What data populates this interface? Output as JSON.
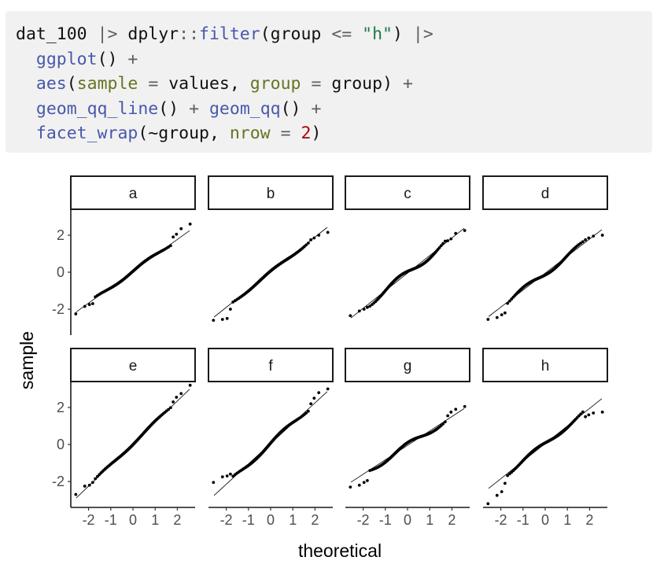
{
  "code": {
    "lines": [
      [
        [
          "id",
          "dat_100 "
        ],
        [
          "op",
          "|> "
        ],
        [
          "id",
          "dplyr"
        ],
        [
          "op",
          "::"
        ],
        [
          "fn",
          "filter"
        ],
        [
          "id",
          "(group "
        ],
        [
          "op",
          "<= "
        ],
        [
          "str",
          "\"h\""
        ],
        [
          "id",
          ") "
        ],
        [
          "op",
          "|>"
        ]
      ],
      [
        [
          "id",
          "  "
        ],
        [
          "fn",
          "ggplot"
        ],
        [
          "id",
          "() "
        ],
        [
          "op",
          "+"
        ]
      ],
      [
        [
          "id",
          "  "
        ],
        [
          "fn",
          "aes"
        ],
        [
          "id",
          "("
        ],
        [
          "arg",
          "sample"
        ],
        [
          "id",
          " "
        ],
        [
          "op",
          "="
        ],
        [
          "id",
          " values, "
        ],
        [
          "arg",
          "group"
        ],
        [
          "id",
          " "
        ],
        [
          "op",
          "="
        ],
        [
          "id",
          " group) "
        ],
        [
          "op",
          "+"
        ]
      ],
      [
        [
          "id",
          "  "
        ],
        [
          "fn",
          "geom_qq_line"
        ],
        [
          "id",
          "() "
        ],
        [
          "op",
          "+"
        ],
        [
          "id",
          " "
        ],
        [
          "fn",
          "geom_qq"
        ],
        [
          "id",
          "() "
        ],
        [
          "op",
          "+"
        ]
      ],
      [
        [
          "id",
          "  "
        ],
        [
          "fn",
          "facet_wrap"
        ],
        [
          "id",
          "(~group, "
        ],
        [
          "arg",
          "nrow"
        ],
        [
          "id",
          " "
        ],
        [
          "op",
          "="
        ],
        [
          "id",
          " "
        ],
        [
          "num",
          "2"
        ],
        [
          "id",
          ")"
        ]
      ]
    ]
  },
  "chart_data": {
    "type": "scatter",
    "subtype": "qq-plot facet_wrap",
    "xlabel": "theoretical",
    "ylabel": "sample",
    "xlim": [
      -2.8,
      2.8
    ],
    "ylim": [
      -3.4,
      3.4
    ],
    "xticks": [
      -2,
      -1,
      0,
      1,
      2
    ],
    "xtick_labels": [
      "-2",
      "-1",
      "0",
      "1",
      "2"
    ],
    "yticks": [
      -2,
      0,
      2
    ],
    "ytick_labels": [
      "-2",
      "0",
      "2"
    ],
    "facets": [
      {
        "label": "a",
        "line": {
          "slope": 0.86,
          "intercept": 0.05
        },
        "qq": {
          "tail_low": [
            -2.25,
            -1.85,
            -1.75,
            -1.7
          ],
          "tail_high": [
            1.9,
            2.05,
            2.35,
            2.6
          ],
          "wiggle": 0.08
        }
      },
      {
        "label": "b",
        "line": {
          "slope": 0.95,
          "intercept": 0.0
        },
        "qq": {
          "tail_low": [
            -2.6,
            -2.55,
            -2.5,
            -2.0
          ],
          "tail_high": [
            1.75,
            1.85,
            2.0,
            2.15
          ],
          "wiggle": 0.07
        }
      },
      {
        "label": "c",
        "line": {
          "slope": 0.95,
          "intercept": -0.05
        },
        "qq": {
          "tail_low": [
            -2.35,
            -2.1,
            -2.0,
            -1.9
          ],
          "tail_high": [
            1.7,
            1.8,
            2.1,
            2.25
          ],
          "wiggle": 0.18
        }
      },
      {
        "label": "d",
        "line": {
          "slope": 0.92,
          "intercept": -0.05
        },
        "qq": {
          "tail_low": [
            -2.55,
            -2.45,
            -2.3,
            -2.2
          ],
          "tail_high": [
            1.75,
            1.85,
            1.95,
            2.0
          ],
          "wiggle": 0.15
        }
      },
      {
        "label": "e",
        "line": {
          "slope": 1.15,
          "intercept": 0.05
        },
        "qq": {
          "tail_low": [
            -2.7,
            -2.25,
            -2.2,
            -2.05
          ],
          "tail_high": [
            2.3,
            2.55,
            2.75,
            3.2
          ],
          "wiggle": 0.07
        }
      },
      {
        "label": "f",
        "line": {
          "slope": 1.1,
          "intercept": 0.05
        },
        "qq": {
          "tail_low": [
            -2.05,
            -1.75,
            -1.7,
            -1.6
          ],
          "tail_high": [
            2.2,
            2.5,
            2.8,
            3.0
          ],
          "wiggle": 0.12
        }
      },
      {
        "label": "g",
        "line": {
          "slope": 0.78,
          "intercept": -0.05
        },
        "qq": {
          "tail_low": [
            -2.3,
            -2.2,
            -2.05,
            -1.95
          ],
          "tail_high": [
            1.55,
            1.75,
            1.9,
            2.05
          ],
          "wiggle": 0.15
        }
      },
      {
        "label": "h",
        "line": {
          "slope": 0.95,
          "intercept": 0.05
        },
        "qq": {
          "tail_low": [
            -3.2,
            -2.75,
            -2.55,
            -2.1
          ],
          "tail_high": [
            1.5,
            1.6,
            1.7,
            1.75
          ],
          "wiggle": 0.12
        }
      }
    ]
  }
}
